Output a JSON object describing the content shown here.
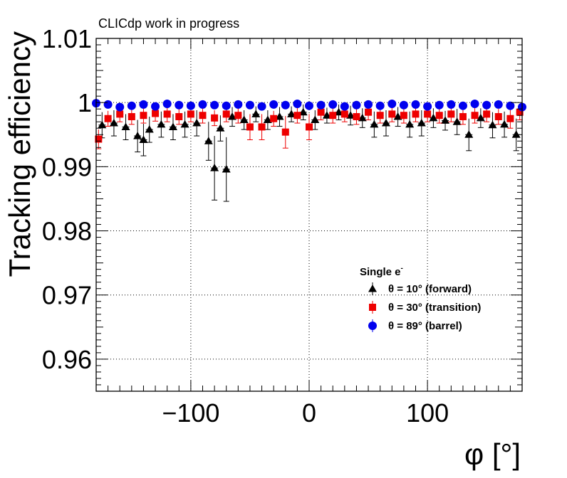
{
  "chart_data": {
    "type": "scatter",
    "annotation": "CLICdp work in progress",
    "xlabel": "φ [°]",
    "ylabel": "Tracking efficiency",
    "xlim": [
      -180,
      180
    ],
    "ylim": [
      0.955,
      1.01
    ],
    "x_ticks": [
      -100,
      0,
      100
    ],
    "x_tick_labels": [
      "−100",
      "0",
      "100"
    ],
    "y_ticks": [
      0.96,
      0.97,
      0.98,
      0.99,
      1.0,
      1.01
    ],
    "y_tick_labels": [
      "0.96",
      "0.97",
      "0.98",
      "0.99",
      "1",
      "1.01"
    ],
    "grid": true,
    "legend": {
      "title": "Single e",
      "title_superscript": "-",
      "placement": "right-middle",
      "entries": [
        "θ = 10° (forward)",
        "θ = 30° (transition)",
        "θ = 89° (barrel)"
      ]
    },
    "series": [
      {
        "name": "θ = 10° (forward)",
        "marker": "triangle",
        "color": "#000000",
        "x": [
          -175,
          -165,
          -155,
          -145,
          -140,
          -135,
          -125,
          -115,
          -105,
          -95,
          -85,
          -80,
          -75,
          -70,
          -65,
          -55,
          -45,
          -35,
          -25,
          -15,
          -5,
          5,
          15,
          25,
          35,
          45,
          55,
          65,
          75,
          85,
          95,
          105,
          115,
          125,
          135,
          145,
          155,
          165,
          175
        ],
        "y": [
          0.9965,
          0.9968,
          0.9962,
          0.9948,
          0.9942,
          0.9958,
          0.9966,
          0.9962,
          0.9966,
          0.9968,
          0.994,
          0.9898,
          0.996,
          0.9896,
          0.9978,
          0.9973,
          0.9982,
          0.9973,
          0.9978,
          0.9982,
          0.9985,
          0.9973,
          0.998,
          0.9985,
          0.998,
          0.9976,
          0.9966,
          0.9968,
          0.9978,
          0.9966,
          0.9968,
          0.9976,
          0.9972,
          0.997,
          0.995,
          0.9976,
          0.9965,
          0.9966,
          0.995
        ],
        "err": [
          0.002,
          0.002,
          0.002,
          0.0025,
          0.0025,
          0.002,
          0.002,
          0.002,
          0.002,
          0.002,
          0.003,
          0.005,
          0.002,
          0.005,
          0.0015,
          0.0015,
          0.0012,
          0.0015,
          0.0015,
          0.0012,
          0.0012,
          0.0015,
          0.0012,
          0.0012,
          0.0015,
          0.0015,
          0.002,
          0.002,
          0.0015,
          0.002,
          0.002,
          0.0015,
          0.0015,
          0.002,
          0.0025,
          0.0015,
          0.002,
          0.002,
          0.0025
        ]
      },
      {
        "name": "θ = 30° (transition)",
        "marker": "square",
        "color": "#ee0000",
        "x": [
          -178,
          -170,
          -160,
          -150,
          -140,
          -130,
          -120,
          -110,
          -100,
          -90,
          -80,
          -70,
          -60,
          -50,
          -40,
          -30,
          -20,
          -10,
          0,
          10,
          20,
          30,
          40,
          50,
          60,
          70,
          80,
          90,
          100,
          110,
          120,
          130,
          140,
          150,
          160,
          170,
          178
        ],
        "y": [
          0.9943,
          0.9975,
          0.9982,
          0.9978,
          0.998,
          0.9983,
          0.9982,
          0.9978,
          0.9982,
          0.998,
          0.9976,
          0.9982,
          0.998,
          0.9962,
          0.9962,
          0.9975,
          0.9954,
          0.998,
          0.9962,
          0.9985,
          0.998,
          0.9982,
          0.9978,
          0.9985,
          0.998,
          0.9982,
          0.998,
          0.9982,
          0.9982,
          0.998,
          0.9982,
          0.9978,
          0.998,
          0.9982,
          0.9978,
          0.9975,
          0.9985
        ],
        "err": [
          0.0015,
          0.0012,
          0.0012,
          0.0012,
          0.0012,
          0.0012,
          0.0012,
          0.0012,
          0.0012,
          0.0012,
          0.0012,
          0.0012,
          0.0012,
          0.002,
          0.002,
          0.0012,
          0.0025,
          0.0012,
          0.002,
          0.0012,
          0.0012,
          0.0012,
          0.0012,
          0.0012,
          0.0012,
          0.0012,
          0.0012,
          0.0012,
          0.0012,
          0.0012,
          0.0012,
          0.0012,
          0.0012,
          0.0012,
          0.0012,
          0.0015,
          0.0012
        ]
      },
      {
        "name": "θ = 89° (barrel)",
        "marker": "circle",
        "color": "#0000ee",
        "x": [
          -180,
          -170,
          -160,
          -150,
          -140,
          -130,
          -120,
          -110,
          -100,
          -90,
          -80,
          -70,
          -60,
          -50,
          -40,
          -30,
          -20,
          -10,
          0,
          10,
          20,
          30,
          40,
          50,
          60,
          70,
          80,
          90,
          100,
          110,
          120,
          130,
          140,
          150,
          160,
          170,
          180
        ],
        "y": [
          0.9999,
          0.9997,
          0.9993,
          0.9995,
          0.9997,
          0.9994,
          0.9998,
          0.9996,
          0.9995,
          0.9997,
          0.9996,
          0.9995,
          0.9997,
          0.9996,
          0.9994,
          0.9997,
          0.9996,
          0.9998,
          0.9995,
          0.9996,
          0.9997,
          0.9994,
          0.9996,
          0.9997,
          0.9995,
          0.9998,
          0.9996,
          0.9997,
          0.9994,
          0.9996,
          0.9997,
          0.9995,
          0.9998,
          0.9996,
          0.9997,
          0.9995,
          0.9993
        ],
        "err": [
          0.0003,
          0.0003,
          0.0004,
          0.0003,
          0.0003,
          0.0004,
          0.0003,
          0.0003,
          0.0003,
          0.0003,
          0.0003,
          0.0003,
          0.0003,
          0.0003,
          0.0004,
          0.0003,
          0.0003,
          0.0003,
          0.0003,
          0.0003,
          0.0003,
          0.0004,
          0.0003,
          0.0003,
          0.0003,
          0.0003,
          0.0003,
          0.0003,
          0.0004,
          0.0003,
          0.0003,
          0.0003,
          0.0003,
          0.0003,
          0.0003,
          0.0003,
          0.0004
        ]
      }
    ]
  }
}
